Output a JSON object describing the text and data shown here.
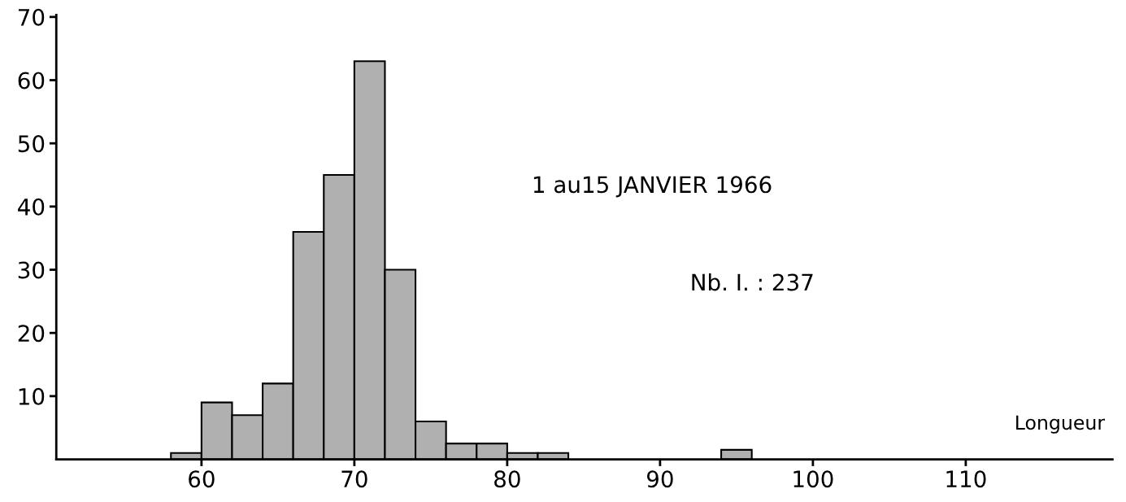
{
  "chart_data": {
    "type": "histogram",
    "bins": [
      58,
      60,
      62,
      64,
      66,
      68,
      70,
      72,
      74,
      76,
      78,
      80,
      82,
      84,
      86,
      88,
      90,
      92,
      94,
      96
    ],
    "values": [
      1,
      9,
      7,
      12,
      36,
      45,
      63,
      30,
      6,
      2.5,
      2.5,
      1,
      1,
      0,
      0,
      0,
      0,
      0,
      1.5
    ],
    "color": "#b0b0b0",
    "xlabel": "Longueur",
    "annotations": [
      "1 au15 JANVIER 1966",
      "Nb. I. : 237"
    ],
    "xlim": [
      50.5,
      119.6
    ],
    "ylim": [
      0,
      70.3
    ],
    "xticks": [
      60,
      70,
      80,
      90,
      100,
      110
    ],
    "yticks": [
      10,
      20,
      30,
      40,
      50,
      60,
      70
    ],
    "grid": false
  }
}
